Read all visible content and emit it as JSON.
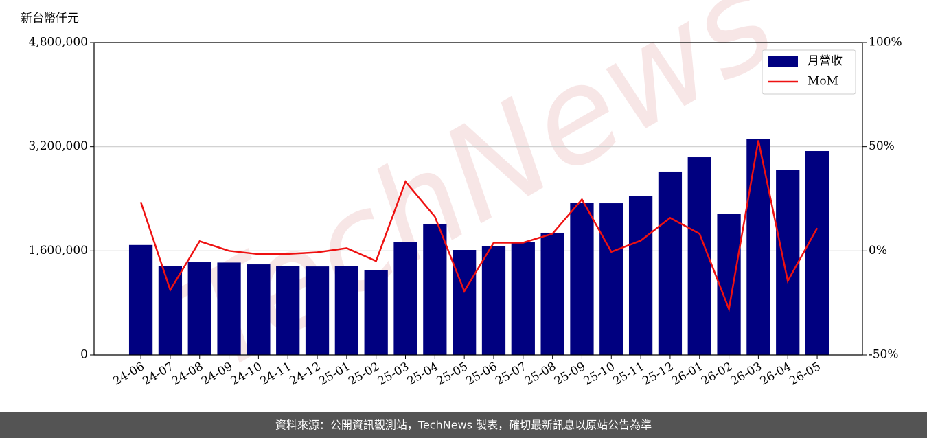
{
  "chart_data": {
    "type": "bar_line",
    "y_label": "新台幣仟元",
    "footer": "資料來源：公開資訊觀測站，TechNews 製表，確切最新訊息以原站公告為準",
    "watermark": "TechNews",
    "categories": [
      "24-06",
      "24-07",
      "24-08",
      "24-09",
      "24-10",
      "24-11",
      "24-12",
      "25-01",
      "25-02",
      "25-03",
      "25-04",
      "25-05",
      "25-06",
      "25-07",
      "25-08",
      "25-09",
      "25-10",
      "25-11",
      "25-12",
      "26-01",
      "26-02",
      "26-03",
      "26-04",
      "26-05"
    ],
    "series": [
      {
        "name": "月營收",
        "type": "bar",
        "color": "#000080",
        "values": [
          1690000,
          1361000,
          1424000,
          1420000,
          1392000,
          1371000,
          1360000,
          1370000,
          1298000,
          1730000,
          2015000,
          1614000,
          1677000,
          1730000,
          1878000,
          2342000,
          2331000,
          2437000,
          2817000,
          3038000,
          2173000,
          3323000,
          2838000,
          3133000
        ]
      },
      {
        "name": "MoM",
        "type": "line",
        "color": "#ee1111",
        "axis": "y2",
        "values": [
          23.4,
          -18.8,
          4.6,
          0,
          -1.6,
          -1.5,
          -0.7,
          1.3,
          -4.9,
          33.2,
          16.4,
          -19.4,
          3.9,
          3.9,
          8.2,
          24.7,
          -0.5,
          4.9,
          15.8,
          8.2,
          -28.0,
          53.0,
          -14.5,
          10.9
        ]
      }
    ],
    "ylim": [
      0,
      4800000
    ],
    "yticks": [
      0,
      {
        "value": 1600000,
        "label": "1,600,000"
      },
      {
        "value": 3200000,
        "label": "3,200,000"
      },
      {
        "value": 4800000,
        "label": "4,800,000"
      }
    ],
    "y2lim": [
      -50,
      100
    ],
    "y2ticks": [
      {
        "value": -50,
        "label": "-50%"
      },
      {
        "value": 0,
        "label": "0%"
      },
      {
        "value": 50,
        "label": "50%"
      },
      {
        "value": 100,
        "label": "100%"
      }
    ],
    "grid": true,
    "legend": "upper right"
  }
}
